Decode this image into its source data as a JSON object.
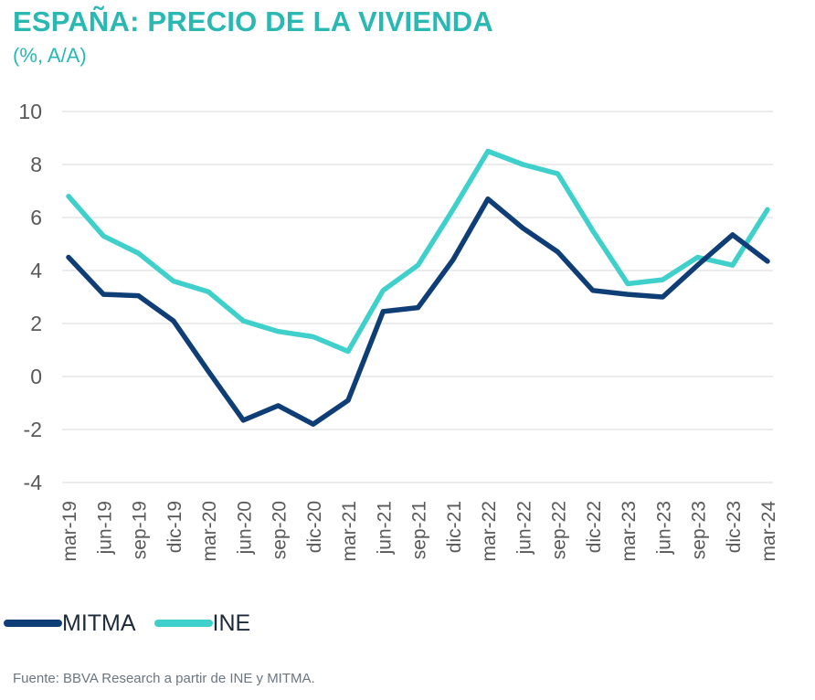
{
  "title": "ESPAÑA: PRECIO DE LA VIVIENDA",
  "subtitle": "(%, A/A)",
  "source": "Fuente: BBVA Research a partir de INE y MITMA.",
  "colors": {
    "mitma": "#0f3e76",
    "ine": "#3fd0cb",
    "title": "#2ab8b3",
    "grid": "#d9d9d9",
    "tick": "#595959"
  },
  "chart_data": {
    "type": "line",
    "title": "ESPAÑA: PRECIO DE LA VIVIENDA",
    "subtitle": "(%, A/A)",
    "xlabel": "",
    "ylabel": "",
    "ylim": [
      -4,
      10
    ],
    "yticks": [
      10,
      8,
      6,
      4,
      2,
      0,
      -2,
      -4
    ],
    "grid": true,
    "legend_position": "bottom-left",
    "categories": [
      "mar-19",
      "jun-19",
      "sep-19",
      "dic-19",
      "mar-20",
      "jun-20",
      "sep-20",
      "dic-20",
      "mar-21",
      "jun-21",
      "sep-21",
      "dic-21",
      "mar-22",
      "jun-22",
      "sep-22",
      "dic-22",
      "mar-23",
      "jun-23",
      "sep-23",
      "dic-23",
      "mar-24"
    ],
    "series": [
      {
        "name": "MITMA",
        "values": [
          4.5,
          3.1,
          3.05,
          2.1,
          0.2,
          -1.65,
          -1.1,
          -1.8,
          -0.9,
          2.45,
          2.6,
          4.4,
          6.7,
          5.6,
          4.7,
          3.25,
          3.1,
          3.0,
          4.2,
          5.35,
          4.35
        ]
      },
      {
        "name": "INE",
        "values": [
          6.8,
          5.3,
          4.65,
          3.6,
          3.2,
          2.1,
          1.7,
          1.5,
          0.95,
          3.25,
          4.2,
          6.3,
          8.5,
          8.0,
          7.65,
          5.5,
          3.5,
          3.65,
          4.5,
          4.2,
          6.3
        ]
      }
    ]
  }
}
